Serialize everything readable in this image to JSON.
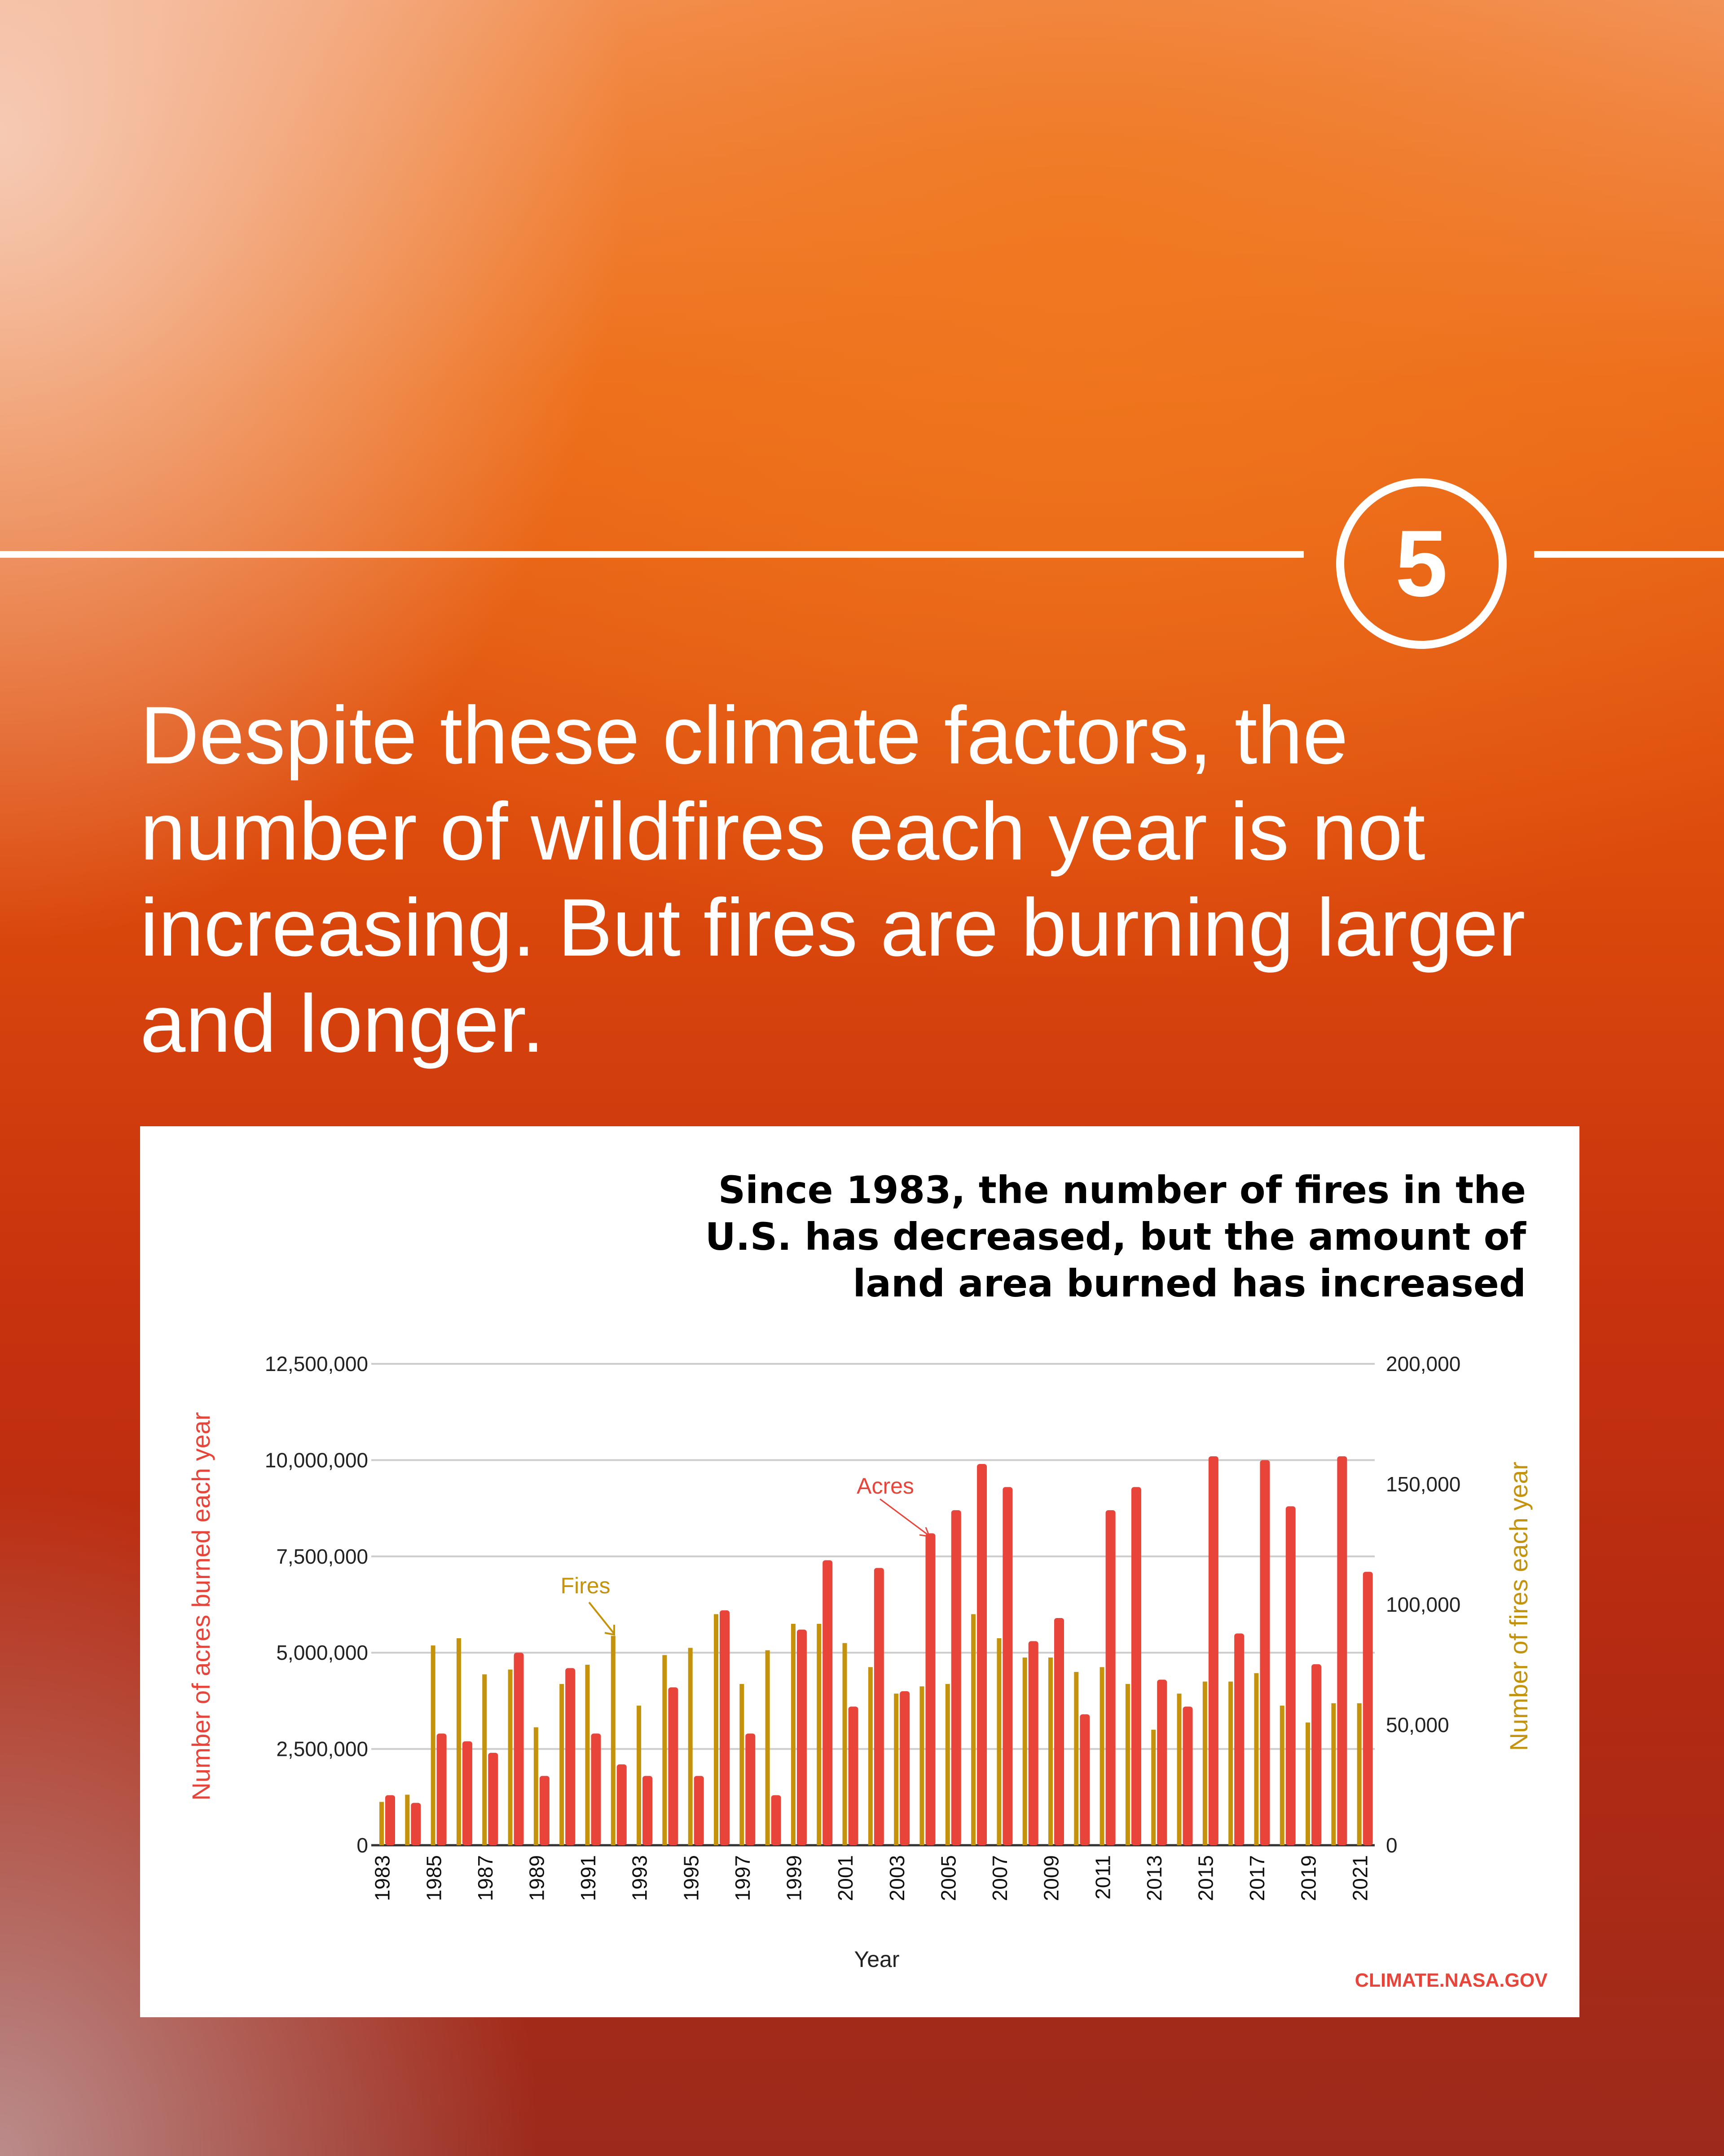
{
  "step_number": "5",
  "headline": "Despite these climate factors, the number of wildfires each year is not increasing. But fires are burning larger and longer.",
  "colors": {
    "acres": "#e8443a",
    "fires": "#c4930b",
    "credit": "#e8443a"
  },
  "credit": "CLIMATE.NASA.GOV",
  "chart_data": {
    "type": "bar",
    "title": [
      "Since 1983, the number of fires in the",
      "U.S. has decreased, but the amount of",
      "land area burned has increased"
    ],
    "xlabel": "Year",
    "ylabel_left": "Number of acres burned each year",
    "ylabel_right": "Number of fires each year",
    "ylim_left": [
      0,
      12500000
    ],
    "ylim_right": [
      0,
      200000
    ],
    "yticks_left": [
      "0",
      "2,500,000",
      "5,000,000",
      "7,500,000",
      "10,000,000",
      "12,500,000"
    ],
    "yticks_right": [
      "0",
      "50,000",
      "100,000",
      "150,000",
      "200,000"
    ],
    "grid": true,
    "annotations": {
      "fires": "Fires",
      "acres": "Acres"
    },
    "categories": [
      1983,
      1984,
      1985,
      1986,
      1987,
      1988,
      1989,
      1990,
      1991,
      1992,
      1993,
      1994,
      1995,
      1996,
      1997,
      1998,
      1999,
      2000,
      2001,
      2002,
      2003,
      2004,
      2005,
      2006,
      2007,
      2008,
      2009,
      2010,
      2011,
      2012,
      2013,
      2014,
      2015,
      2016,
      2017,
      2018,
      2019,
      2020,
      2021
    ],
    "series": [
      {
        "name": "Fires",
        "axis": "right",
        "values": [
          18000,
          21000,
          83000,
          86000,
          71000,
          73000,
          49000,
          67000,
          75000,
          87000,
          58000,
          79000,
          82000,
          96000,
          67000,
          81000,
          92000,
          92000,
          84000,
          74000,
          63000,
          66000,
          67000,
          96000,
          86000,
          78000,
          78000,
          72000,
          74000,
          67000,
          48000,
          63000,
          68000,
          68000,
          71500,
          58000,
          51000,
          59000,
          59000
        ]
      },
      {
        "name": "Acres",
        "axis": "left",
        "values": [
          1300000,
          1100000,
          2900000,
          2700000,
          2400000,
          5000000,
          1800000,
          4600000,
          2900000,
          2100000,
          1800000,
          4100000,
          1800000,
          6100000,
          2900000,
          1300000,
          5600000,
          7400000,
          3600000,
          7200000,
          4000000,
          8100000,
          8700000,
          9900000,
          9300000,
          5300000,
          5900000,
          3400000,
          8700000,
          9300000,
          4300000,
          3600000,
          10100000,
          5500000,
          10000000,
          8800000,
          4700000,
          10100000,
          7100000
        ]
      }
    ]
  }
}
